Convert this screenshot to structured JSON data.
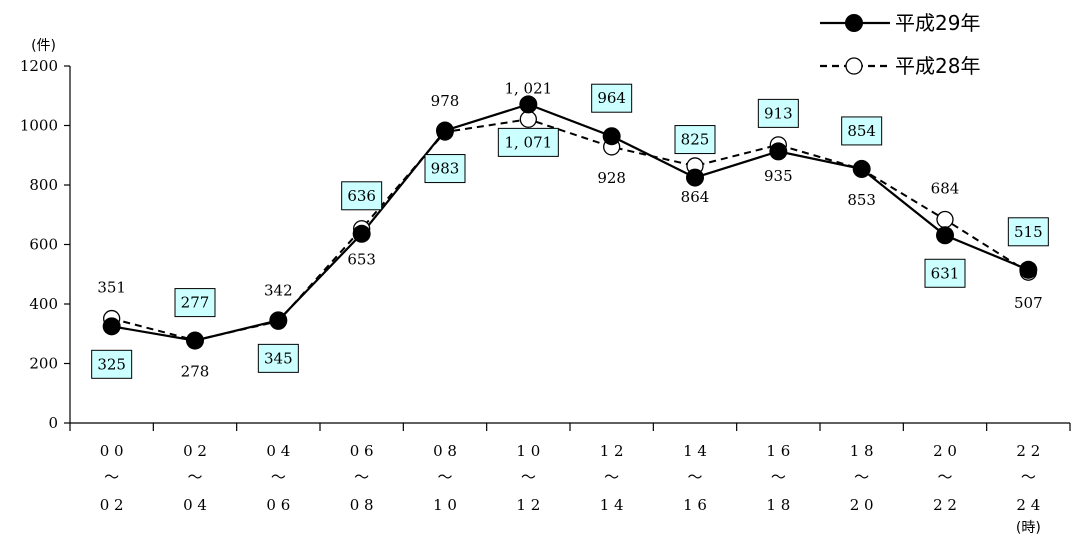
{
  "chart_data": {
    "type": "line",
    "y_unit": "(件)",
    "x_unit": "(時)",
    "ylim": [
      0,
      1200
    ],
    "y_ticks": [
      0,
      200,
      400,
      600,
      800,
      1000,
      1200
    ],
    "categories": [
      {
        "top": "0 0",
        "mid": "～",
        "bottom": "0 2"
      },
      {
        "top": "0 2",
        "mid": "～",
        "bottom": "0 4"
      },
      {
        "top": "0 4",
        "mid": "～",
        "bottom": "0 6"
      },
      {
        "top": "0 6",
        "mid": "～",
        "bottom": "0 8"
      },
      {
        "top": "0 8",
        "mid": "～",
        "bottom": "1 0"
      },
      {
        "top": "1 0",
        "mid": "～",
        "bottom": "1 2"
      },
      {
        "top": "1 2",
        "mid": "～",
        "bottom": "1 4"
      },
      {
        "top": "1 4",
        "mid": "～",
        "bottom": "1 6"
      },
      {
        "top": "1 6",
        "mid": "～",
        "bottom": "1 8"
      },
      {
        "top": "1 8",
        "mid": "～",
        "bottom": "2 0"
      },
      {
        "top": "2 0",
        "mid": "～",
        "bottom": "2 2"
      },
      {
        "top": "2 2",
        "mid": "～",
        "bottom": "2 4"
      }
    ],
    "series": [
      {
        "name": "平成29年",
        "style": "solid",
        "marker": "filled-circle",
        "values": [
          325,
          277,
          345,
          636,
          983,
          1071,
          964,
          825,
          913,
          854,
          631,
          515
        ],
        "labels": [
          "325",
          "277",
          "345",
          "636",
          "983",
          "1, 071",
          "964",
          "825",
          "913",
          "854",
          "631",
          "515"
        ],
        "label_boxed": true,
        "label_box_color": "#ccffff"
      },
      {
        "name": "平成28年",
        "style": "dashed",
        "marker": "open-circle",
        "values": [
          351,
          278,
          342,
          653,
          978,
          1021,
          928,
          864,
          935,
          853,
          684,
          507
        ],
        "labels": [
          "351",
          "278",
          "342",
          "653",
          "978",
          "1, 021",
          "928",
          "864",
          "935",
          "853",
          "684",
          "507"
        ],
        "label_boxed": false
      }
    ],
    "legend_position": "top-right",
    "grid": false
  }
}
